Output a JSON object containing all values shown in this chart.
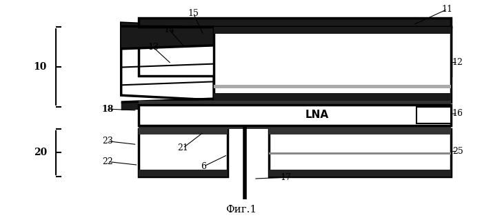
{
  "bg_color": "#ffffff",
  "fig_width": 6.99,
  "fig_height": 3.19,
  "dpi": 100,
  "caption": "Фиг.1",
  "lna_label": "LNA"
}
